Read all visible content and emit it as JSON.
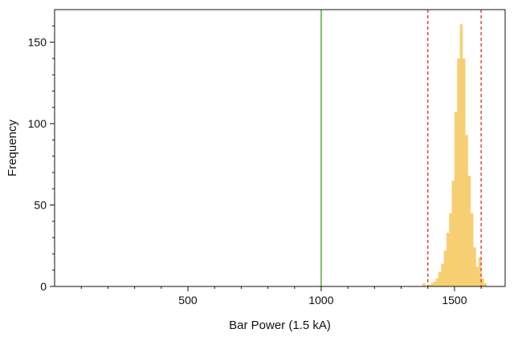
{
  "chart_data": {
    "type": "bar",
    "title": "",
    "xlabel": "Bar Power (1.5 kA)",
    "ylabel": "Frequency",
    "xlim": [
      0,
      1690
    ],
    "ylim": [
      0,
      170
    ],
    "x_ticks": [
      500,
      1000,
      1500
    ],
    "y_ticks": [
      0,
      50,
      100,
      150
    ],
    "grid": false,
    "bin_width": 10,
    "bins": [
      {
        "x": 1380,
        "value": 2
      },
      {
        "x": 1400,
        "value": 1
      },
      {
        "x": 1410,
        "value": 2
      },
      {
        "x": 1420,
        "value": 3
      },
      {
        "x": 1430,
        "value": 5
      },
      {
        "x": 1440,
        "value": 9
      },
      {
        "x": 1450,
        "value": 14
      },
      {
        "x": 1460,
        "value": 22
      },
      {
        "x": 1470,
        "value": 33
      },
      {
        "x": 1480,
        "value": 45
      },
      {
        "x": 1490,
        "value": 65
      },
      {
        "x": 1500,
        "value": 107
      },
      {
        "x": 1510,
        "value": 140
      },
      {
        "x": 1520,
        "value": 161
      },
      {
        "x": 1530,
        "value": 140
      },
      {
        "x": 1540,
        "value": 93
      },
      {
        "x": 1550,
        "value": 68
      },
      {
        "x": 1560,
        "value": 45
      },
      {
        "x": 1570,
        "value": 24
      },
      {
        "x": 1580,
        "value": 12
      },
      {
        "x": 1590,
        "value": 18
      },
      {
        "x": 1600,
        "value": 5
      },
      {
        "x": 1610,
        "value": 2
      }
    ],
    "reference_lines": [
      {
        "x": 1000,
        "color": "#7dc16b",
        "style": "solid"
      },
      {
        "x": 1400,
        "color": "#d9413d",
        "style": "dashed"
      },
      {
        "x": 1600,
        "color": "#d9413d",
        "style": "dashed"
      }
    ],
    "bar_color": "#f7cf73"
  }
}
